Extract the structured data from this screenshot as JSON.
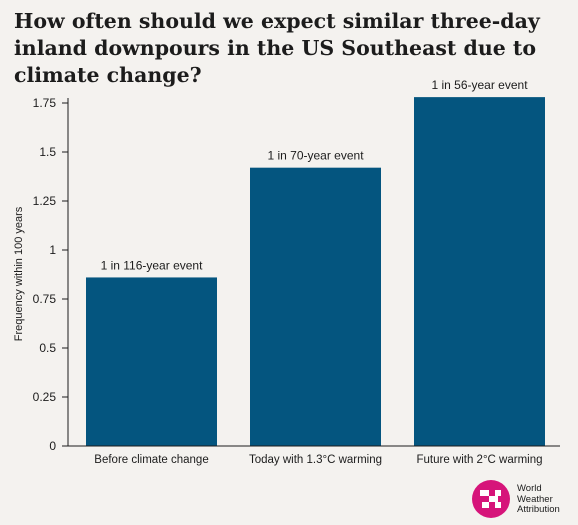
{
  "page": {
    "title": "How often should we expect similar three-day inland downpours in the US Southeast due to climate change?"
  },
  "logo": {
    "lines": [
      "World",
      "Weather",
      "Attribution"
    ],
    "icon": "wwa-logo-icon",
    "color": "#d6147a"
  },
  "colors": {
    "bar": "#04557f",
    "background": "#f4f2ef",
    "text": "#1c1c1c"
  },
  "chart_data": {
    "type": "bar",
    "title": "How often should we expect similar three-day inland downpours in the US Southeast due to climate change?",
    "xlabel": "",
    "ylabel": "Frequency within 100 years",
    "categories": [
      "Before climate change",
      "Today with 1.3°C warming",
      "Future with 2°C warming"
    ],
    "values": [
      0.86,
      1.42,
      1.78
    ],
    "data_labels": [
      "1 in 116-year event",
      "1 in 70-year event",
      "1 in 56-year event"
    ],
    "yticks": [
      "0",
      "0.25",
      "0.5",
      "0.75",
      "1",
      "1.25",
      "1.5",
      "1.75"
    ],
    "ylim": [
      0,
      1.8
    ],
    "grid": false,
    "legend": "none"
  }
}
